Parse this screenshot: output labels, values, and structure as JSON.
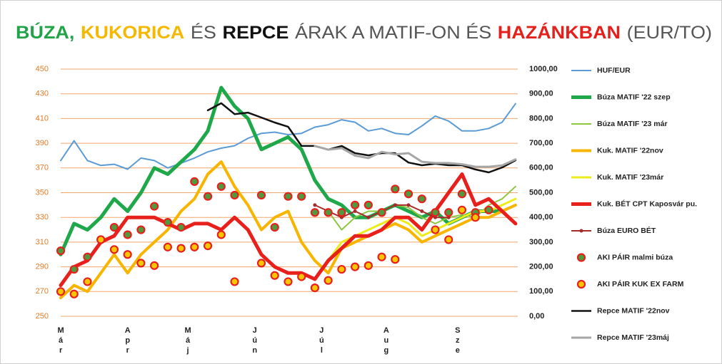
{
  "chart_data": {
    "type": "line",
    "title_parts": [
      {
        "text": "BÚZA,",
        "color": "#21a348",
        "bold": true
      },
      {
        "text": "KUKORICA",
        "color": "#f5b800",
        "bold": true
      },
      {
        "text": "ÉS",
        "color": "#555555",
        "bold": false
      },
      {
        "text": "REPCE",
        "color": "#111111",
        "bold": true
      },
      {
        "text": "ÁRAK A MATIF-ON ÉS",
        "color": "#555555",
        "bold": false
      },
      {
        "text": "HAZÁNKBAN",
        "color": "#e3201b",
        "bold": true
      },
      {
        "text": "(EUR/TO)",
        "color": "#555555",
        "bold": false
      }
    ],
    "x": [
      0,
      6,
      12,
      18,
      24,
      30,
      36,
      42,
      48,
      54,
      60,
      66,
      72,
      78,
      84,
      90,
      96,
      102,
      108,
      114,
      120,
      126,
      132,
      138,
      144,
      150,
      156,
      162,
      168,
      174,
      180,
      186,
      192,
      198,
      204
    ],
    "xlim": [
      0,
      205
    ],
    "xticks": [
      {
        "value": 0,
        "label": "Már"
      },
      {
        "value": 30,
        "label": "Apr"
      },
      {
        "value": 57,
        "label": "Máj"
      },
      {
        "value": 87,
        "label": "Jún"
      },
      {
        "value": 117,
        "label": "Júl"
      },
      {
        "value": 146,
        "label": "Aug"
      },
      {
        "value": 178,
        "label": "Sze"
      }
    ],
    "ylim": [
      250,
      450
    ],
    "yticks": [
      250,
      270,
      290,
      310,
      330,
      350,
      370,
      390,
      410,
      430,
      450
    ],
    "y2lim": [
      0,
      1000
    ],
    "y2ticks": [
      {
        "value": 0,
        "label": "0,00"
      },
      {
        "value": 100,
        "label": "100,00"
      },
      {
        "value": 200,
        "label": "200,00"
      },
      {
        "value": 300,
        "label": "300,00"
      },
      {
        "value": 400,
        "label": "400,00"
      },
      {
        "value": 500,
        "label": "500,00"
      },
      {
        "value": 600,
        "label": "600,00"
      },
      {
        "value": 700,
        "label": "700,00"
      },
      {
        "value": 800,
        "label": "800,00"
      },
      {
        "value": 900,
        "label": "900,00"
      },
      {
        "value": 1000,
        "label": "1000,00"
      }
    ],
    "grid": true,
    "grid_color": "#f2a56b",
    "legend": "right",
    "series": [
      {
        "name": "HUF/EUR",
        "kind": "line",
        "axis": "y2",
        "color": "#5b9bd5",
        "width": 2,
        "values": [
          630,
          710,
          630,
          610,
          615,
          595,
          640,
          630,
          600,
          620,
          640,
          665,
          680,
          690,
          720,
          740,
          745,
          735,
          740,
          765,
          775,
          795,
          785,
          750,
          760,
          740,
          735,
          770,
          810,
          790,
          750,
          750,
          760,
          785,
          860
        ]
      },
      {
        "name": "Búza MATIF '22 szep",
        "kind": "line",
        "color": "#1fa84a",
        "width": 5,
        "values": [
          300,
          325,
          320,
          330,
          345,
          335,
          350,
          370,
          365,
          375,
          385,
          400,
          435,
          420,
          410,
          385,
          390,
          395,
          385,
          360,
          345,
          340,
          330,
          330,
          335,
          340,
          335,
          330,
          335,
          325,
          330,
          335,
          335,
          335,
          null
        ]
      },
      {
        "name": "Búza MATIF '23 már",
        "kind": "line",
        "color": "#8dc63f",
        "width": 2,
        "values": [
          null,
          null,
          null,
          null,
          null,
          null,
          null,
          null,
          null,
          null,
          null,
          null,
          null,
          null,
          null,
          null,
          null,
          null,
          null,
          null,
          335,
          320,
          330,
          335,
          335,
          340,
          338,
          330,
          325,
          330,
          332,
          330,
          340,
          345,
          355
        ]
      },
      {
        "name": "Kuk. MATIF '22nov",
        "kind": "line",
        "color": "#f7b500",
        "width": 4,
        "values": [
          265,
          275,
          270,
          285,
          300,
          285,
          300,
          310,
          320,
          335,
          345,
          365,
          375,
          355,
          340,
          320,
          330,
          335,
          310,
          295,
          285,
          305,
          310,
          315,
          320,
          325,
          320,
          310,
          315,
          320,
          325,
          330,
          330,
          335,
          340
        ]
      },
      {
        "name": "Kuk. MATIF '23már",
        "kind": "line",
        "color": "#ecec1a",
        "width": 3,
        "values": [
          null,
          null,
          null,
          null,
          null,
          null,
          null,
          null,
          null,
          null,
          null,
          null,
          null,
          null,
          null,
          null,
          null,
          null,
          null,
          null,
          295,
          310,
          315,
          320,
          325,
          330,
          325,
          315,
          320,
          325,
          330,
          335,
          335,
          340,
          345
        ]
      },
      {
        "name": "Kuk. BÉT CPT Kaposvár pu.",
        "kind": "line",
        "color": "#e8201c",
        "width": 5,
        "values": [
          275,
          290,
          295,
          310,
          315,
          330,
          330,
          330,
          325,
          320,
          325,
          325,
          320,
          330,
          320,
          300,
          290,
          285,
          285,
          280,
          295,
          305,
          315,
          315,
          320,
          330,
          330,
          320,
          335,
          350,
          365,
          340,
          345,
          335,
          325
        ]
      },
      {
        "name": "Búza EURO BÉT",
        "kind": "line",
        "marker": true,
        "color": "#a52a2a",
        "width": 2,
        "values": [
          null,
          null,
          null,
          null,
          null,
          null,
          null,
          null,
          null,
          null,
          null,
          null,
          null,
          null,
          null,
          null,
          null,
          null,
          null,
          340,
          335,
          330,
          335,
          330,
          335,
          340,
          340,
          335,
          330,
          330,
          null,
          null,
          null,
          null,
          null
        ]
      },
      {
        "name": "AKI PÁIR malmi búza",
        "kind": "scatter",
        "color": "#4f9a3f",
        "edgecolor": "#e8201c",
        "values": [
          303,
          288,
          298,
          312,
          322,
          316,
          320,
          339,
          326,
          322,
          359,
          347,
          355,
          348,
          null,
          348,
          322,
          347,
          347,
          334,
          334,
          334,
          340,
          340,
          334,
          353,
          349,
          345,
          334,
          334,
          349,
          334,
          336,
          null,
          null
        ]
      },
      {
        "name": "AKI PÁIR KUK EX FARM",
        "kind": "scatter",
        "color": "#f7c600",
        "edgecolor": "#e8201c",
        "values": [
          270,
          268,
          278,
          312,
          304,
          300,
          293,
          291,
          306,
          305,
          306,
          307,
          316,
          278,
          null,
          293,
          283,
          278,
          282,
          273,
          279,
          288,
          290,
          291,
          298,
          296,
          null,
          null,
          320,
          312,
          336,
          330,
          null,
          null,
          null
        ]
      },
      {
        "name": "Repce MATIF '22nov",
        "kind": "line",
        "axis": "y2",
        "color": "#111111",
        "width": 2.5,
        "values": [
          null,
          null,
          null,
          null,
          null,
          null,
          null,
          null,
          null,
          null,
          null,
          833,
          862,
          818,
          824,
          804,
          784,
          767,
          689,
          689,
          674,
          689,
          660,
          651,
          660,
          660,
          622,
          611,
          617,
          611,
          611,
          594,
          582,
          602,
          631
        ]
      },
      {
        "name": "Repce MATIF '23máj",
        "kind": "line",
        "axis": "y2",
        "color": "#a6a6a6",
        "width": 3,
        "values": [
          null,
          null,
          null,
          null,
          null,
          null,
          null,
          null,
          null,
          null,
          null,
          null,
          null,
          null,
          null,
          null,
          null,
          null,
          null,
          689,
          674,
          680,
          650,
          640,
          665,
          655,
          660,
          625,
          620,
          620,
          615,
          605,
          605,
          610,
          635
        ]
      }
    ]
  }
}
